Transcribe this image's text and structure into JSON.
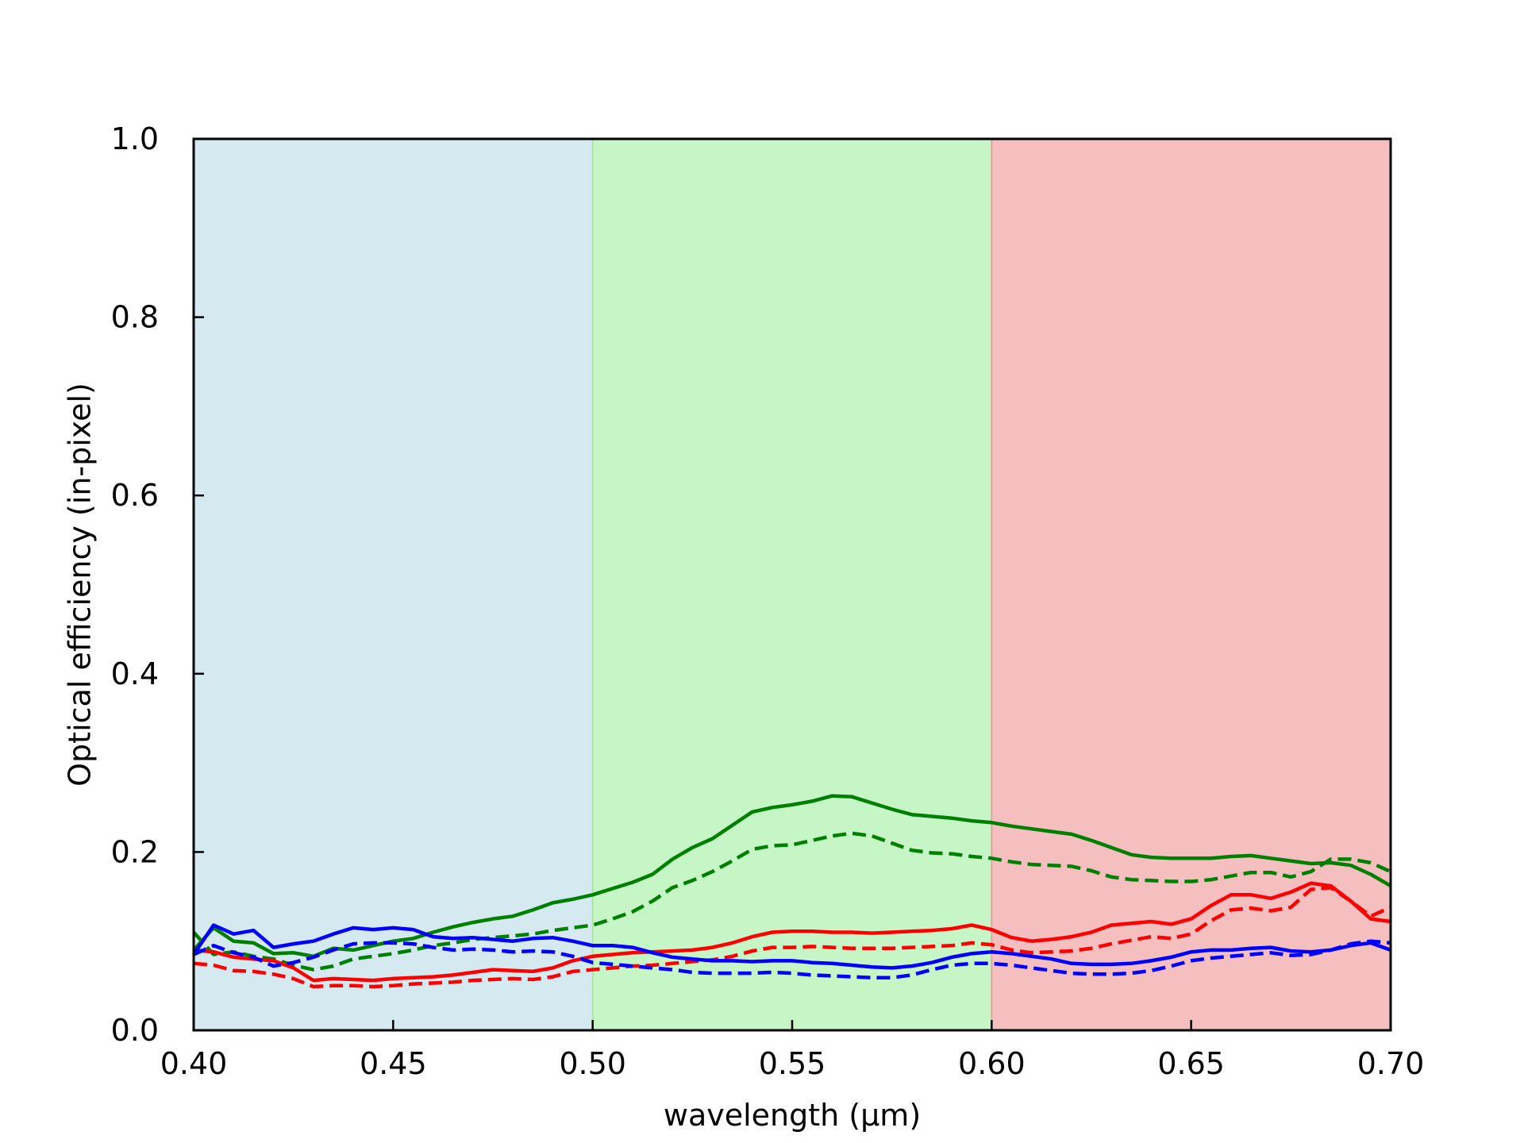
{
  "chart_data": {
    "type": "line",
    "title": "",
    "xlabel": "wavelength (µm)",
    "ylabel": "Optical efficiency (in-pixel)",
    "xlim": [
      0.4,
      0.7
    ],
    "ylim": [
      0.0,
      1.0
    ],
    "xticks": [
      0.4,
      0.45,
      0.5,
      0.55,
      0.6,
      0.65,
      0.7
    ],
    "xtick_labels": [
      "0.40",
      "0.45",
      "0.50",
      "0.55",
      "0.60",
      "0.65",
      "0.70"
    ],
    "yticks": [
      0.0,
      0.2,
      0.4,
      0.6,
      0.8,
      1.0
    ],
    "ytick_labels": [
      "0.0",
      "0.2",
      "0.4",
      "0.6",
      "0.8",
      "1.0"
    ],
    "grid": false,
    "legend": "none",
    "bands": [
      {
        "x_start": 0.4,
        "x_end": 0.5,
        "color": "#d4eaf0"
      },
      {
        "x_start": 0.5,
        "x_end": 0.6,
        "color": "#c6f5c6"
      },
      {
        "x_start": 0.6,
        "x_end": 0.7,
        "color": "#f5bfbf"
      }
    ],
    "x": [
      0.4,
      0.405,
      0.41,
      0.415,
      0.42,
      0.425,
      0.43,
      0.435,
      0.44,
      0.445,
      0.45,
      0.455,
      0.46,
      0.465,
      0.47,
      0.475,
      0.48,
      0.485,
      0.49,
      0.495,
      0.5,
      0.505,
      0.51,
      0.515,
      0.52,
      0.525,
      0.53,
      0.535,
      0.54,
      0.545,
      0.55,
      0.555,
      0.56,
      0.565,
      0.57,
      0.575,
      0.58,
      0.585,
      0.59,
      0.595,
      0.6,
      0.605,
      0.61,
      0.615,
      0.62,
      0.625,
      0.63,
      0.635,
      0.64,
      0.645,
      0.65,
      0.655,
      0.66,
      0.665,
      0.67,
      0.675,
      0.68,
      0.685,
      0.69,
      0.695,
      0.7
    ],
    "series": [
      {
        "color": "#008000",
        "dash": false,
        "values": [
          0.09,
          0.115,
          0.1,
          0.098,
          0.086,
          0.087,
          0.083,
          0.092,
          0.09,
          0.095,
          0.1,
          0.103,
          0.11,
          0.116,
          0.121,
          0.125,
          0.128,
          0.135,
          0.143,
          0.147,
          0.152,
          0.159,
          0.166,
          0.175,
          0.192,
          0.205,
          0.215,
          0.23,
          0.245,
          0.25,
          0.253,
          0.257,
          0.263,
          0.262,
          0.255,
          0.248,
          0.242,
          0.24,
          0.238,
          0.235,
          0.233,
          0.229,
          0.226,
          0.223,
          0.22,
          0.213,
          0.205,
          0.197,
          0.194,
          0.193,
          0.193,
          0.193,
          0.195,
          0.196,
          0.193,
          0.19,
          0.187,
          0.188,
          0.185,
          0.175,
          0.162
        ]
      },
      {
        "color": "#008000",
        "dash": true,
        "values": [
          0.11,
          0.085,
          0.088,
          0.083,
          0.08,
          0.073,
          0.068,
          0.072,
          0.08,
          0.083,
          0.086,
          0.09,
          0.095,
          0.098,
          0.102,
          0.104,
          0.106,
          0.108,
          0.112,
          0.115,
          0.118,
          0.125,
          0.133,
          0.145,
          0.16,
          0.168,
          0.178,
          0.19,
          0.203,
          0.207,
          0.208,
          0.213,
          0.218,
          0.221,
          0.218,
          0.21,
          0.202,
          0.199,
          0.198,
          0.195,
          0.193,
          0.189,
          0.186,
          0.185,
          0.184,
          0.179,
          0.172,
          0.169,
          0.168,
          0.167,
          0.167,
          0.169,
          0.173,
          0.177,
          0.177,
          0.172,
          0.178,
          0.192,
          0.192,
          0.188,
          0.178
        ]
      },
      {
        "color": "#ff0000",
        "dash": false,
        "values": [
          0.09,
          0.088,
          0.082,
          0.08,
          0.078,
          0.07,
          0.056,
          0.058,
          0.057,
          0.056,
          0.058,
          0.059,
          0.06,
          0.062,
          0.065,
          0.068,
          0.067,
          0.066,
          0.07,
          0.078,
          0.083,
          0.085,
          0.087,
          0.088,
          0.089,
          0.09,
          0.093,
          0.098,
          0.105,
          0.11,
          0.111,
          0.111,
          0.11,
          0.11,
          0.109,
          0.11,
          0.111,
          0.112,
          0.114,
          0.118,
          0.113,
          0.104,
          0.1,
          0.102,
          0.105,
          0.11,
          0.118,
          0.12,
          0.122,
          0.119,
          0.125,
          0.14,
          0.152,
          0.152,
          0.148,
          0.155,
          0.165,
          0.162,
          0.145,
          0.125,
          0.122
        ]
      },
      {
        "color": "#ff0000",
        "dash": true,
        "values": [
          0.075,
          0.073,
          0.067,
          0.066,
          0.063,
          0.058,
          0.049,
          0.05,
          0.05,
          0.049,
          0.05,
          0.052,
          0.053,
          0.054,
          0.056,
          0.057,
          0.058,
          0.057,
          0.06,
          0.066,
          0.068,
          0.07,
          0.072,
          0.073,
          0.075,
          0.077,
          0.079,
          0.083,
          0.089,
          0.093,
          0.093,
          0.094,
          0.093,
          0.092,
          0.092,
          0.092,
          0.093,
          0.094,
          0.095,
          0.098,
          0.096,
          0.09,
          0.087,
          0.088,
          0.089,
          0.092,
          0.097,
          0.101,
          0.105,
          0.103,
          0.108,
          0.123,
          0.135,
          0.137,
          0.134,
          0.138,
          0.158,
          0.16,
          0.145,
          0.128,
          0.138
        ]
      },
      {
        "color": "#0000ff",
        "dash": false,
        "values": [
          0.085,
          0.118,
          0.108,
          0.112,
          0.093,
          0.097,
          0.1,
          0.108,
          0.115,
          0.113,
          0.115,
          0.113,
          0.105,
          0.103,
          0.104,
          0.102,
          0.1,
          0.103,
          0.104,
          0.1,
          0.095,
          0.095,
          0.093,
          0.087,
          0.082,
          0.08,
          0.078,
          0.078,
          0.077,
          0.078,
          0.078,
          0.076,
          0.075,
          0.073,
          0.071,
          0.07,
          0.072,
          0.076,
          0.082,
          0.086,
          0.088,
          0.086,
          0.083,
          0.08,
          0.075,
          0.074,
          0.074,
          0.075,
          0.078,
          0.082,
          0.088,
          0.09,
          0.09,
          0.092,
          0.093,
          0.089,
          0.088,
          0.09,
          0.095,
          0.098,
          0.09
        ]
      },
      {
        "color": "#0000ff",
        "dash": true,
        "values": [
          0.085,
          0.095,
          0.087,
          0.082,
          0.072,
          0.076,
          0.082,
          0.09,
          0.097,
          0.098,
          0.098,
          0.097,
          0.093,
          0.09,
          0.091,
          0.09,
          0.088,
          0.089,
          0.088,
          0.083,
          0.076,
          0.074,
          0.072,
          0.07,
          0.068,
          0.065,
          0.064,
          0.064,
          0.064,
          0.065,
          0.064,
          0.062,
          0.061,
          0.06,
          0.059,
          0.059,
          0.062,
          0.068,
          0.073,
          0.075,
          0.075,
          0.073,
          0.07,
          0.067,
          0.064,
          0.063,
          0.063,
          0.064,
          0.067,
          0.072,
          0.078,
          0.081,
          0.083,
          0.085,
          0.087,
          0.084,
          0.085,
          0.09,
          0.097,
          0.1,
          0.098
        ]
      }
    ]
  }
}
